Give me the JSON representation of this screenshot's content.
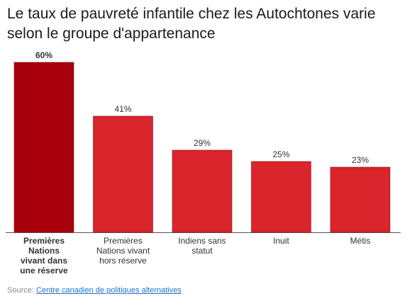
{
  "title": "Le taux de pauvreté infantile chez les Autochtones varie selon le groupe d'appartenance",
  "source": {
    "prefix": "Source:",
    "link_text": "Centre canadien de politiques alternatives"
  },
  "colors": {
    "highlight": "#a8000c",
    "bar": "#d9252b",
    "bar_edge": "#8a0f14"
  },
  "chart_data": {
    "type": "bar",
    "categories": [
      [
        "Premières",
        "Nations",
        "vivant dans",
        "une réserve"
      ],
      [
        "Premières",
        "Nations vivant",
        "hors réserve"
      ],
      [
        "Indiens sans",
        "statut"
      ],
      [
        "Inuit"
      ],
      [
        "Métis"
      ]
    ],
    "values": [
      60,
      41,
      29,
      25,
      23
    ],
    "value_labels": [
      "60%",
      "41%",
      "29%",
      "25%",
      "23%"
    ],
    "highlight_index": 0,
    "ylim": [
      0,
      60
    ],
    "xlabel": "",
    "ylabel": "",
    "grid": false
  }
}
